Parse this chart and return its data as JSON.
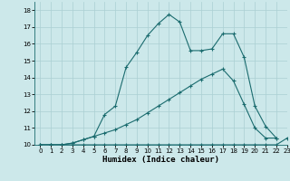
{
  "xlabel": "Humidex (Indice chaleur)",
  "bg_color": "#cce8ea",
  "grid_color": "#aacfd2",
  "line_color": "#1a6b6e",
  "xlim": [
    -0.5,
    23
  ],
  "ylim": [
    10,
    18.5
  ],
  "xticks": [
    0,
    1,
    2,
    3,
    4,
    5,
    6,
    7,
    8,
    9,
    10,
    11,
    12,
    13,
    14,
    15,
    16,
    17,
    18,
    19,
    20,
    21,
    22,
    23
  ],
  "yticks": [
    10,
    11,
    12,
    13,
    14,
    15,
    16,
    17,
    18
  ],
  "line1_x": [
    0,
    1,
    2,
    3,
    4,
    5,
    6,
    7,
    8,
    9,
    10,
    11,
    12,
    13,
    14,
    15,
    16,
    17,
    18,
    19,
    20,
    21,
    22,
    23
  ],
  "line1_y": [
    10,
    10,
    10,
    10,
    10,
    10,
    10,
    10,
    10,
    10,
    10,
    10,
    10,
    10,
    10,
    10,
    10,
    10,
    10,
    10,
    10,
    10,
    10,
    10.4
  ],
  "line2_x": [
    0,
    1,
    2,
    3,
    4,
    5,
    6,
    7,
    8,
    9,
    10,
    11,
    12,
    13,
    14,
    15,
    16,
    17,
    18,
    19,
    20,
    21,
    22
  ],
  "line2_y": [
    10,
    10,
    10,
    10.1,
    10.3,
    10.5,
    11.8,
    12.3,
    14.6,
    15.5,
    16.5,
    17.2,
    17.75,
    17.3,
    15.6,
    15.6,
    15.7,
    16.6,
    16.6,
    15.2,
    12.3,
    11.1,
    10.4
  ],
  "line3_x": [
    0,
    1,
    2,
    3,
    4,
    5,
    6,
    7,
    8,
    9,
    10,
    11,
    12,
    13,
    14,
    15,
    16,
    17,
    18,
    19,
    20,
    21,
    22
  ],
  "line3_y": [
    10,
    10,
    10,
    10.1,
    10.3,
    10.5,
    10.7,
    10.9,
    11.2,
    11.5,
    11.9,
    12.3,
    12.7,
    13.1,
    13.5,
    13.9,
    14.2,
    14.5,
    13.8,
    12.4,
    11.0,
    10.4,
    10.4
  ]
}
